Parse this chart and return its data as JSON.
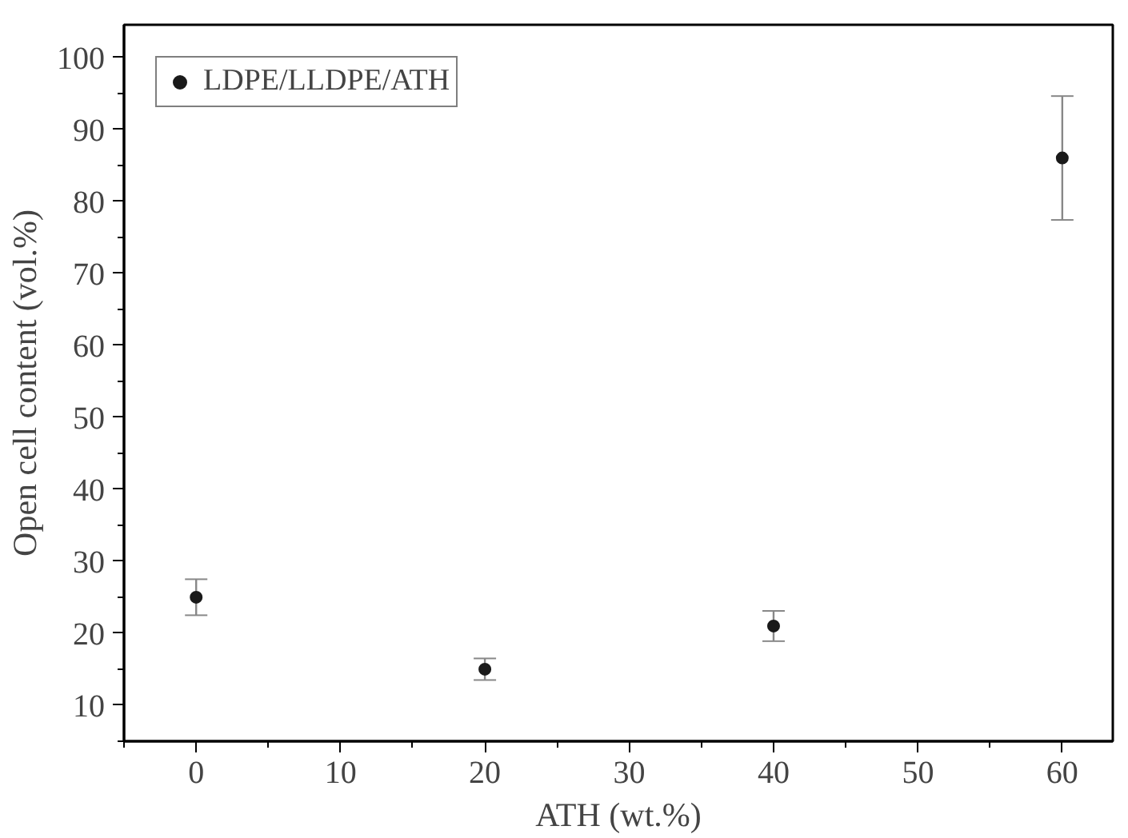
{
  "chart_data": {
    "type": "scatter",
    "xlabel": "ATH (wt.%)",
    "ylabel": "Open cell content (vol.%)",
    "x": [
      0,
      20,
      40,
      60
    ],
    "series": [
      {
        "name": "LDPE/LLDPE/ATH",
        "color": "#1a1a1a",
        "values": [
          25,
          15,
          21,
          86
        ],
        "errors": [
          2.5,
          1.5,
          2.1,
          8.6
        ]
      }
    ],
    "xlim": [
      -5,
      63.5
    ],
    "ylim": [
      5,
      104.5
    ],
    "xticks": [
      0,
      10,
      20,
      30,
      40,
      50,
      60
    ],
    "yticks": [
      10,
      20,
      30,
      40,
      50,
      60,
      70,
      80,
      90,
      100
    ],
    "grid": false,
    "legend": "top left",
    "marker": "circle"
  }
}
